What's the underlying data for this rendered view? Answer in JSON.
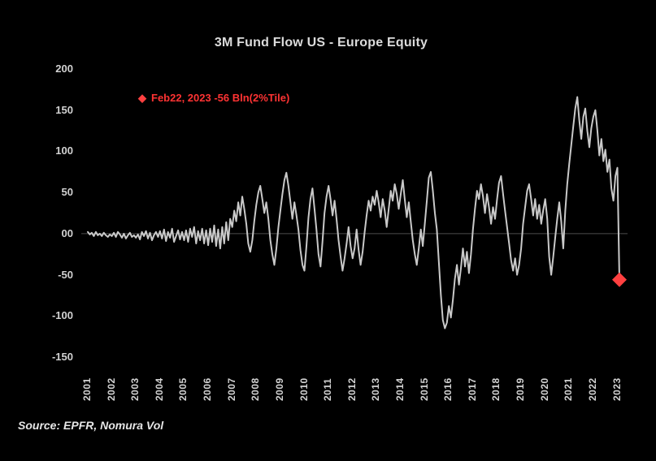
{
  "title": "3M Fund Flow US - Europe Equity",
  "annotation": {
    "marker": "◆",
    "label": "Feb22, 2023 -56 Bln(2%Tile)"
  },
  "source": "Source: EPFR, Nomura Vol",
  "colors": {
    "background": "#000000",
    "line": "#c9c9c9",
    "accent_red": "#ff4040",
    "legend_red": "#ff3333",
    "axis_text": "#d2d2d2",
    "zero_line": "#4d4d4d"
  },
  "chart_data": {
    "type": "line",
    "title": "3M Fund Flow US - Europe Equity",
    "xlabel": "",
    "ylabel": "",
    "ylim": [
      -150,
      200
    ],
    "grid": false,
    "y_tick_values": [
      200,
      150,
      100,
      50,
      0,
      -50,
      -100,
      -150
    ],
    "y_tick_labels": [
      "200",
      "150",
      "100",
      "50",
      "00",
      "-50",
      "-100",
      "-150"
    ],
    "x_tick_labels": [
      "2001",
      "2002",
      "2003",
      "2004",
      "2005",
      "2006",
      "2007",
      "2008",
      "2009",
      "2010",
      "2011",
      "2012",
      "2013",
      "2014",
      "2015",
      "2016",
      "2017",
      "2018",
      "2019",
      "2020",
      "2021",
      "2022",
      "2023"
    ],
    "x_frequency": "monthly",
    "x_start": "2001-01",
    "x_end": "2023-02",
    "series": [
      {
        "name": "3M Fund Flow US - Europe Equity (Bln)",
        "monthly_values": [
          2,
          -1,
          1,
          -3,
          2,
          -2,
          0,
          -3,
          1,
          -2,
          -4,
          -1,
          -3,
          1,
          -4,
          2,
          -1,
          -5,
          0,
          -6,
          -2,
          1,
          -4,
          -2,
          -5,
          -1,
          -7,
          2,
          -3,
          3,
          -6,
          1,
          -8,
          -2,
          2,
          -4,
          3,
          -6,
          5,
          -9,
          2,
          -5,
          6,
          -10,
          -3,
          4,
          -7,
          2,
          -8,
          4,
          -10,
          6,
          -4,
          8,
          -12,
          3,
          -8,
          6,
          -12,
          4,
          -14,
          6,
          -10,
          10,
          -15,
          5,
          -18,
          8,
          -12,
          14,
          -8,
          18,
          8,
          28,
          15,
          38,
          22,
          45,
          30,
          12,
          -12,
          -22,
          -8,
          15,
          35,
          50,
          58,
          42,
          25,
          38,
          18,
          -8,
          -25,
          -38,
          -18,
          8,
          28,
          48,
          65,
          74,
          58,
          38,
          18,
          38,
          22,
          5,
          -20,
          -38,
          -45,
          -15,
          20,
          42,
          55,
          30,
          5,
          -25,
          -40,
          -10,
          25,
          45,
          58,
          42,
          22,
          40,
          18,
          -8,
          -28,
          -45,
          -30,
          -12,
          8,
          -15,
          -30,
          -18,
          5,
          -20,
          -38,
          -22,
          2,
          22,
          40,
          28,
          45,
          35,
          52,
          38,
          20,
          42,
          28,
          8,
          30,
          52,
          40,
          60,
          48,
          30,
          48,
          65,
          42,
          20,
          38,
          15,
          -8,
          -25,
          -38,
          -18,
          5,
          -15,
          12,
          40,
          68,
          75,
          52,
          25,
          5,
          -35,
          -75,
          -105,
          -115,
          -108,
          -88,
          -102,
          -80,
          -55,
          -38,
          -62,
          -42,
          -18,
          -40,
          -22,
          -48,
          -25,
          5,
          30,
          52,
          42,
          60,
          45,
          25,
          48,
          32,
          12,
          32,
          18,
          42,
          62,
          70,
          48,
          28,
          8,
          -12,
          -32,
          -45,
          -30,
          -50,
          -38,
          -18,
          12,
          32,
          52,
          60,
          42,
          22,
          42,
          18,
          35,
          12,
          28,
          42,
          18,
          -28,
          -50,
          -28,
          -5,
          18,
          38,
          15,
          -18,
          28,
          60,
          85,
          108,
          130,
          152,
          166,
          138,
          115,
          142,
          152,
          125,
          105,
          128,
          142,
          150,
          125,
          95,
          115,
          88,
          102,
          75,
          90,
          55,
          40,
          70,
          80,
          -56
        ]
      }
    ],
    "highlight_point": {
      "date": "Feb22, 2023",
      "value": -56,
      "note": "2%Tile"
    },
    "legend_position": "top-left-inside"
  }
}
